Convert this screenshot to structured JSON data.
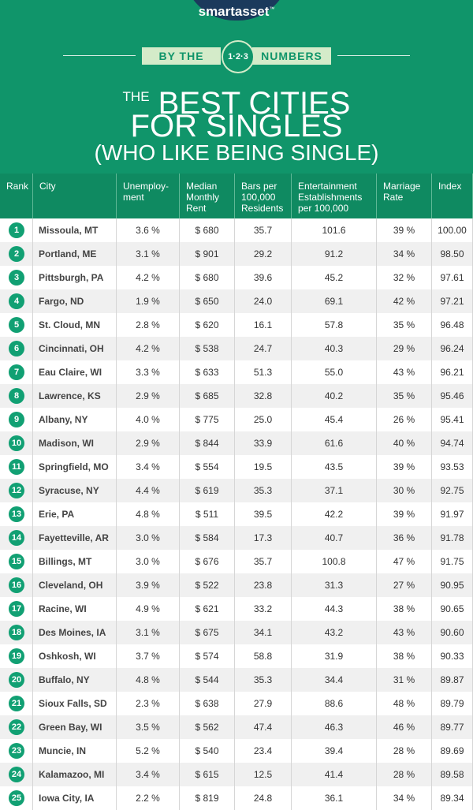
{
  "logo": {
    "name": "smartasset",
    "mark": "™"
  },
  "ribbon": {
    "left": "BY THE",
    "badge": "1·2·3",
    "right": "NUMBERS"
  },
  "title": {
    "small": "THE",
    "line1": "BEST CITIES",
    "line2": "FOR SINGLES",
    "line3": "(WHO LIKE BEING SINGLE)"
  },
  "table": {
    "header": [
      [
        "Rank"
      ],
      [
        "City"
      ],
      [
        "Unemploy-",
        "ment"
      ],
      [
        "Median",
        "Monthly",
        "Rent"
      ],
      [
        "Bars per",
        "100,000",
        "Residents"
      ],
      [
        "Entertainment",
        "Establishments",
        "per 100,000"
      ],
      [
        "Marriage",
        "Rate"
      ],
      [
        "Index"
      ]
    ],
    "rows": [
      [
        "1",
        "Missoula, MT",
        "3.6 %",
        "$ 680",
        "35.7",
        "101.6",
        "39 %",
        "100.00"
      ],
      [
        "2",
        "Portland, ME",
        "3.1 %",
        "$ 901",
        "29.2",
        "91.2",
        "34 %",
        "98.50"
      ],
      [
        "3",
        "Pittsburgh, PA",
        "4.2 %",
        "$ 680",
        "39.6",
        "45.2",
        "32 %",
        "97.61"
      ],
      [
        "4",
        "Fargo, ND",
        "1.9 %",
        "$ 650",
        "24.0",
        "69.1",
        "42 %",
        "97.21"
      ],
      [
        "5",
        "St. Cloud, MN",
        "2.8 %",
        "$ 620",
        "16.1",
        "57.8",
        "35 %",
        "96.48"
      ],
      [
        "6",
        "Cincinnati, OH",
        "4.2 %",
        "$ 538",
        "24.7",
        "40.3",
        "29 %",
        "96.24"
      ],
      [
        "7",
        "Eau Claire, WI",
        "3.3 %",
        "$ 633",
        "51.3",
        "55.0",
        "43 %",
        "96.21"
      ],
      [
        "8",
        "Lawrence, KS",
        "2.9 %",
        "$ 685",
        "32.8",
        "40.2",
        "35 %",
        "95.46"
      ],
      [
        "9",
        "Albany, NY",
        "4.0 %",
        "$ 775",
        "25.0",
        "45.4",
        "26 %",
        "95.41"
      ],
      [
        "10",
        "Madison, WI",
        "2.9 %",
        "$ 844",
        "33.9",
        "61.6",
        "40 %",
        "94.74"
      ],
      [
        "11",
        "Springfield, MO",
        "3.4 %",
        "$ 554",
        "19.5",
        "43.5",
        "39 %",
        "93.53"
      ],
      [
        "12",
        "Syracuse, NY",
        "4.4 %",
        "$ 619",
        "35.3",
        "37.1",
        "30 %",
        "92.75"
      ],
      [
        "13",
        "Erie, PA",
        "4.8 %",
        "$ 511",
        "39.5",
        "42.2",
        "39 %",
        "91.97"
      ],
      [
        "14",
        "Fayetteville, AR",
        "3.0 %",
        "$ 584",
        "17.3",
        "40.7",
        "36 %",
        "91.78"
      ],
      [
        "15",
        "Billings, MT",
        "3.0 %",
        "$ 676",
        "35.7",
        "100.8",
        "47 %",
        "91.75"
      ],
      [
        "16",
        "Cleveland, OH",
        "3.9 %",
        "$ 522",
        "23.8",
        "31.3",
        "27 %",
        "90.95"
      ],
      [
        "17",
        "Racine, WI",
        "4.9 %",
        "$ 621",
        "33.2",
        "44.3",
        "38 %",
        "90.65"
      ],
      [
        "18",
        "Des Moines, IA",
        "3.1 %",
        "$ 675",
        "34.1",
        "43.2",
        "43 %",
        "90.60"
      ],
      [
        "19",
        "Oshkosh, WI",
        "3.7 %",
        "$ 574",
        "58.8",
        "31.9",
        "38 %",
        "90.33"
      ],
      [
        "20",
        "Buffalo, NY",
        "4.8 %",
        "$ 544",
        "35.3",
        "34.4",
        "31 %",
        "89.87"
      ],
      [
        "21",
        "Sioux Falls, SD",
        "2.3 %",
        "$ 638",
        "27.9",
        "88.6",
        "48 %",
        "89.79"
      ],
      [
        "22",
        "Green Bay, WI",
        "3.5 %",
        "$ 562",
        "47.4",
        "46.3",
        "46 %",
        "89.77"
      ],
      [
        "23",
        "Muncie, IN",
        "5.2 %",
        "$ 540",
        "23.4",
        "39.4",
        "28 %",
        "89.69"
      ],
      [
        "24",
        "Kalamazoo, MI",
        "3.4 %",
        "$ 615",
        "12.5",
        "41.4",
        "28 %",
        "89.58"
      ],
      [
        "25",
        "Iowa City, IA",
        "2.2 %",
        "$ 819",
        "24.8",
        "36.1",
        "34 %",
        "89.34"
      ]
    ]
  }
}
